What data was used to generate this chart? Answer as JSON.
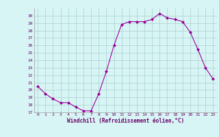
{
  "x": [
    0,
    1,
    2,
    3,
    4,
    5,
    6,
    7,
    8,
    9,
    10,
    11,
    12,
    13,
    14,
    15,
    16,
    17,
    18,
    19,
    20,
    21,
    22,
    23
  ],
  "y": [
    20.5,
    19.5,
    18.8,
    18.3,
    18.3,
    17.7,
    17.2,
    17.2,
    19.5,
    22.5,
    26.0,
    28.8,
    29.2,
    29.2,
    29.2,
    29.5,
    30.3,
    29.7,
    29.5,
    29.2,
    27.8,
    25.5,
    23.0,
    21.5
  ],
  "line_color": "#990099",
  "marker": "D",
  "marker_size": 2.0,
  "bg_color": "#d8f5f5",
  "grid_color": "#aacfcf",
  "xlabel": "Windchill (Refroidissement éolien,°C)",
  "xlabel_color": "#660066",
  "tick_color": "#660066",
  "ylim": [
    17,
    31
  ],
  "xlim": [
    -0.5,
    23.5
  ],
  "yticks": [
    17,
    18,
    19,
    20,
    21,
    22,
    23,
    24,
    25,
    26,
    27,
    28,
    29,
    30
  ],
  "xticks": [
    0,
    1,
    2,
    3,
    4,
    5,
    6,
    7,
    8,
    9,
    10,
    11,
    12,
    13,
    14,
    15,
    16,
    17,
    18,
    19,
    20,
    21,
    22,
    23
  ]
}
